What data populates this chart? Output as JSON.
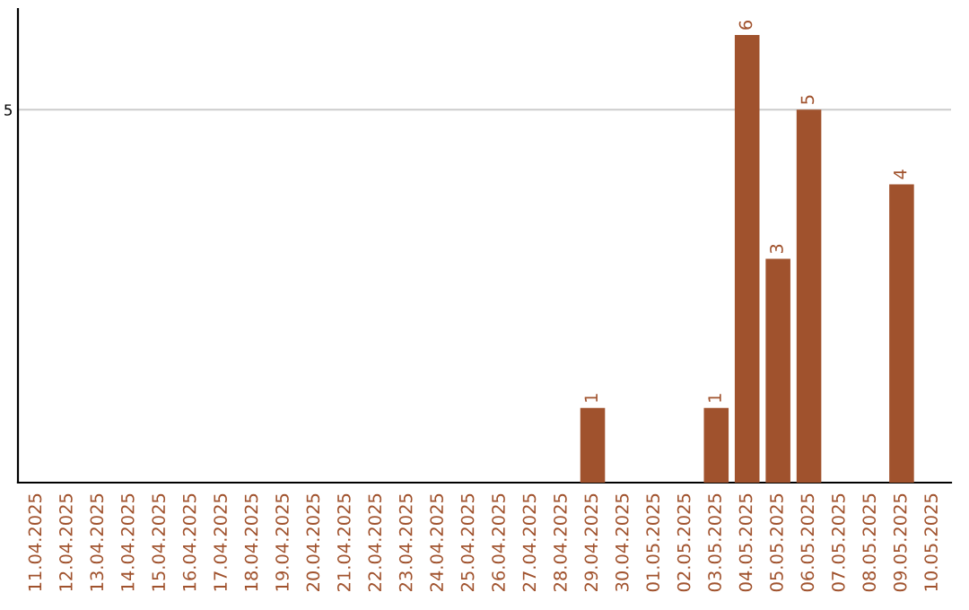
{
  "chart_data": {
    "type": "bar",
    "categories": [
      "11.04.2025",
      "12.04.2025",
      "13.04.2025",
      "14.04.2025",
      "15.04.2025",
      "16.04.2025",
      "17.04.2025",
      "18.04.2025",
      "19.04.2025",
      "20.04.2025",
      "21.04.2025",
      "22.04.2025",
      "23.04.2025",
      "24.04.2025",
      "25.04.2025",
      "26.04.2025",
      "27.04.2025",
      "28.04.2025",
      "29.04.2025",
      "30.04.2025",
      "01.05.2025",
      "02.05.2025",
      "03.05.2025",
      "04.05.2025",
      "05.05.2025",
      "06.05.2025",
      "07.05.2025",
      "08.05.2025",
      "09.05.2025",
      "10.05.2025"
    ],
    "values": [
      null,
      null,
      null,
      null,
      null,
      null,
      null,
      null,
      null,
      null,
      null,
      null,
      null,
      null,
      null,
      null,
      null,
      null,
      1,
      null,
      null,
      null,
      1,
      6,
      3,
      5,
      null,
      null,
      4,
      null
    ],
    "color": "#a0522d",
    "ylim": [
      0,
      6.35
    ],
    "yticks": [
      5
    ],
    "grid": "y",
    "data_labels": true
  }
}
